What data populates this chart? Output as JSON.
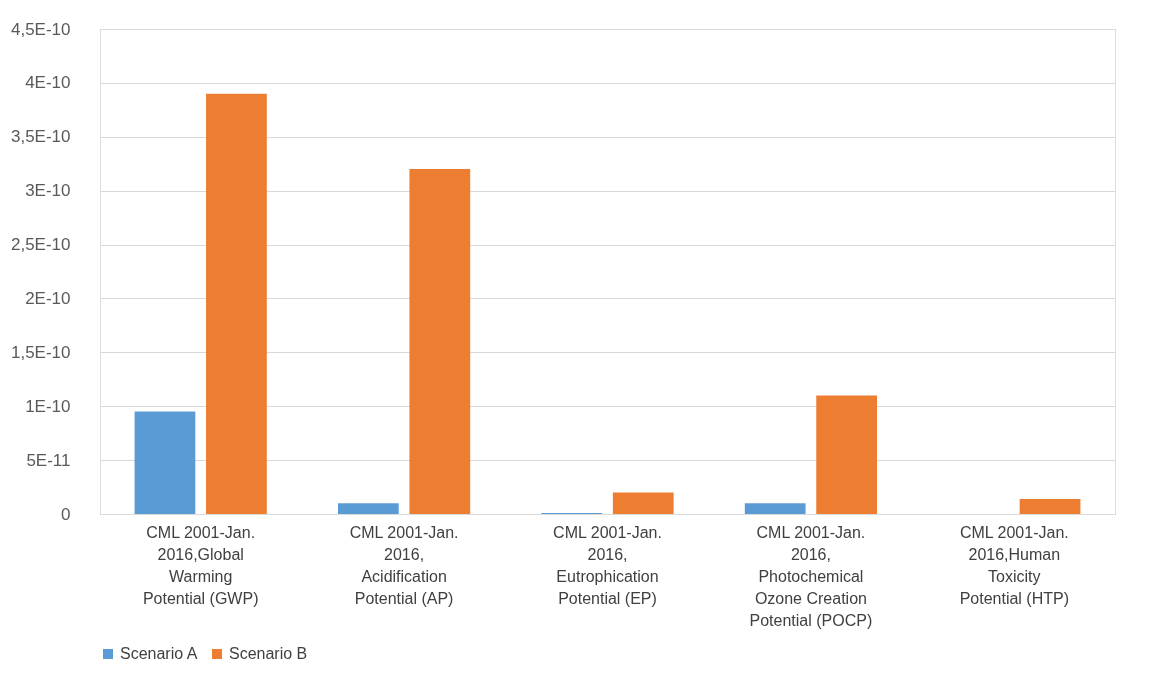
{
  "chart_data": {
    "type": "bar",
    "categories": [
      "CML 2001-Jan. 2016,Global Warming Potential (GWP)",
      "CML 2001-Jan. 2016,Acidification Potential (AP)",
      "CML 2001-Jan. 2016,Eutrophication Potential (EP)",
      "CML 2001-Jan. 2016,Photochemical Ozone Creation Potential (POCP)",
      "CML 2001-Jan. 2016,Human Toxicity Potential (HTP)"
    ],
    "series": [
      {
        "name": "Scenario A",
        "color": "#5b9bd5",
        "values": [
          9.5e-11,
          1e-11,
          1e-12,
          1e-11,
          0
        ]
      },
      {
        "name": "Scenario B",
        "color": "#ed7d31",
        "values": [
          3.9e-10,
          3.2e-10,
          2e-11,
          1.1e-10,
          1.4e-11
        ]
      }
    ],
    "ylim": [
      0,
      4.5e-10
    ],
    "yticks": [
      0,
      {
        "value": 5e-11,
        "label": "5E-11"
      },
      {
        "value": 1e-10,
        "label": "1E-10"
      },
      {
        "value": 1.5e-10,
        "label": "1,5E-10"
      },
      {
        "value": 2e-10,
        "label": "2E-10"
      },
      {
        "value": 2.5e-10,
        "label": "2,5E-10"
      },
      {
        "value": 3e-10,
        "label": "3E-10"
      },
      {
        "value": 3.5e-10,
        "label": "3,5E-10"
      },
      {
        "value": 4e-10,
        "label": "4E-10"
      },
      {
        "value": 4.5e-10,
        "label": "4,5E-10"
      }
    ],
    "grid": "y",
    "legend": "bottom"
  }
}
